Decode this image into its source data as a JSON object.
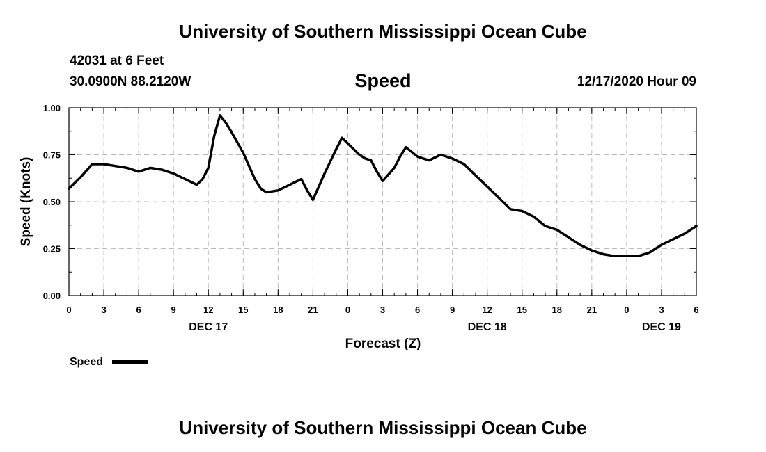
{
  "header": {
    "top_title": "University of Southern Mississippi Ocean Cube",
    "bottom_title": "University of Southern Mississippi Ocean Cube",
    "station": "42031 at 6 Feet",
    "location": "30.0900N 88.2120W",
    "timestamp": "12/17/2020 Hour 09"
  },
  "chart_data": {
    "type": "line",
    "title": "Speed",
    "xlabel": "Forecast (Z)",
    "ylabel": "Speed (Knots)",
    "xlim": [
      0,
      54
    ],
    "ylim": [
      0,
      1
    ],
    "grid": true,
    "x_ticks": [
      "0",
      "3",
      "6",
      "9",
      "12",
      "15",
      "18",
      "21",
      "0",
      "3",
      "6",
      "9",
      "12",
      "15",
      "18",
      "21",
      "0",
      "3",
      "6"
    ],
    "y_ticks": [
      "0.00",
      "0.25",
      "0.50",
      "0.75",
      "1.00"
    ],
    "date_labels": [
      {
        "text": "DEC 17",
        "x": 12
      },
      {
        "text": "DEC 18",
        "x": 36
      },
      {
        "text": "DEC 19",
        "x": 51
      }
    ],
    "legend": {
      "label": "Speed",
      "placement": "bottom-left"
    },
    "series": [
      {
        "name": "Speed",
        "color": "#000000",
        "x": [
          0,
          1,
          2,
          3,
          4,
          5,
          6,
          7,
          8,
          9,
          10,
          11,
          11.5,
          12,
          12.5,
          13,
          13.5,
          14,
          15,
          16,
          16.5,
          17,
          18,
          19,
          20,
          20.5,
          21,
          22,
          23,
          23.5,
          24,
          25,
          25.5,
          26,
          26.5,
          27,
          28,
          28.5,
          29,
          30,
          30.5,
          31,
          32,
          33,
          34,
          35,
          36,
          37,
          38,
          39,
          40,
          41,
          42,
          43,
          44,
          45,
          46,
          47,
          48,
          49,
          50,
          51,
          52,
          53,
          54
        ],
        "y": [
          0.57,
          0.63,
          0.7,
          0.7,
          0.69,
          0.68,
          0.66,
          0.68,
          0.67,
          0.65,
          0.62,
          0.59,
          0.62,
          0.68,
          0.85,
          0.96,
          0.92,
          0.87,
          0.76,
          0.62,
          0.57,
          0.55,
          0.56,
          0.59,
          0.62,
          0.56,
          0.51,
          0.65,
          0.78,
          0.84,
          0.81,
          0.75,
          0.73,
          0.72,
          0.66,
          0.61,
          0.68,
          0.74,
          0.79,
          0.74,
          0.73,
          0.72,
          0.75,
          0.73,
          0.7,
          0.64,
          0.58,
          0.52,
          0.46,
          0.45,
          0.42,
          0.37,
          0.35,
          0.31,
          0.27,
          0.24,
          0.22,
          0.21,
          0.21,
          0.21,
          0.23,
          0.27,
          0.3,
          0.33,
          0.37
        ]
      }
    ]
  }
}
